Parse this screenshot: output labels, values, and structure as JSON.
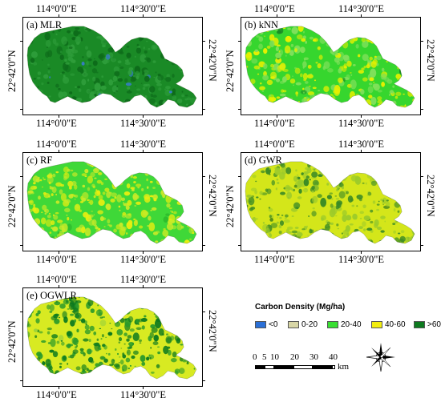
{
  "map_panels": [
    {
      "label": "(a) MLR",
      "colors": {
        "base": "#1a8a26",
        "mid": "#0d6b1a",
        "accent": "#2e9d3a",
        "spot": "#3a7bd5"
      }
    },
    {
      "label": "(b) kNN",
      "colors": {
        "base": "#36d62e",
        "mid": "#7fe05a",
        "accent": "#e8f000",
        "spot": "#1a8a26"
      }
    },
    {
      "label": "(c) RF",
      "colors": {
        "base": "#3fd838",
        "mid": "#e8ee10",
        "accent": "#c8ea28",
        "spot": "#2ab52a"
      }
    },
    {
      "label": "(d) GWR",
      "colors": {
        "base": "#d4e61a",
        "mid": "#3a8a26",
        "accent": "#9ccb2a",
        "spot": "#1e6b1a"
      }
    },
    {
      "label": "(e) OGWLR",
      "colors": {
        "base": "#d8ea22",
        "mid": "#0d7a1f",
        "accent": "#2a9a2a",
        "spot": "#9ad23a"
      }
    }
  ],
  "axis_labels": {
    "lon_left": "114°0'0\"E",
    "lon_right": "114°30'0\"E",
    "lat": "22°42'0\"N"
  },
  "legend": {
    "title": "Carbon Density (Mg/ha)",
    "items": [
      {
        "label": "<0",
        "color": "#2a6fd6"
      },
      {
        "label": "0-20",
        "color": "#d8d6a6"
      },
      {
        "label": "20-40",
        "color": "#39df32"
      },
      {
        "label": "40-60",
        "color": "#f2ee10"
      },
      {
        "label": ">60",
        "color": "#0d7a1f"
      }
    ]
  },
  "scale_bar": {
    "ticks": [
      "0",
      "5",
      "10",
      "20",
      "30",
      "40"
    ],
    "unit": "km"
  }
}
